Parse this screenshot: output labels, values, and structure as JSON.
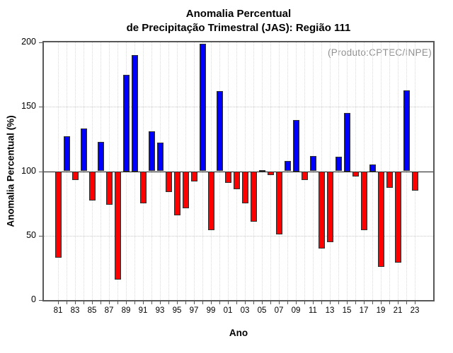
{
  "header": {
    "title_line1": "Anomalia Percentual",
    "title_line2": "de Precipitação Trimestral (JAS): Região 111"
  },
  "annotation": {
    "text": "(Produto:CPTEC/INPE)",
    "color": "#919191"
  },
  "chart_data": {
    "type": "bar",
    "title": "Anomalia Percentual de Precipitação Trimestral (JAS): Região 111",
    "xlabel": "Ano",
    "ylabel": "Anomalia Percentual (%)",
    "ylim": [
      0,
      200
    ],
    "yticks": [
      0,
      50,
      100,
      150,
      200
    ],
    "baseline": 100,
    "grid": "dotted",
    "legend_position": "top-right-inside",
    "bar_color_above": "#0000ff",
    "bar_color_below": "#ff0000",
    "years": [
      1981,
      1982,
      1983,
      1984,
      1985,
      1986,
      1987,
      1988,
      1989,
      1990,
      1991,
      1992,
      1993,
      1994,
      1995,
      1996,
      1997,
      1998,
      1999,
      2000,
      2001,
      2002,
      2003,
      2004,
      2005,
      2006,
      2007,
      2008,
      2009,
      2010,
      2011,
      2012,
      2013,
      2014,
      2015,
      2016,
      2017,
      2018,
      2019,
      2020,
      2021,
      2022,
      2023
    ],
    "xtick_labels": [
      "81",
      "83",
      "85",
      "87",
      "89",
      "91",
      "93",
      "95",
      "97",
      "99",
      "01",
      "03",
      "05",
      "07",
      "09",
      "11",
      "13",
      "15",
      "17",
      "19",
      "21",
      "23"
    ],
    "values": [
      33,
      127,
      93,
      133,
      77,
      123,
      74,
      16,
      175,
      190,
      75,
      131,
      122,
      84,
      66,
      71,
      92,
      199,
      54,
      162,
      91,
      86,
      75,
      61,
      101,
      97,
      51,
      108,
      140,
      93,
      112,
      40,
      45,
      111,
      145,
      96,
      54,
      105,
      26,
      87,
      29,
      163,
      85
    ]
  }
}
